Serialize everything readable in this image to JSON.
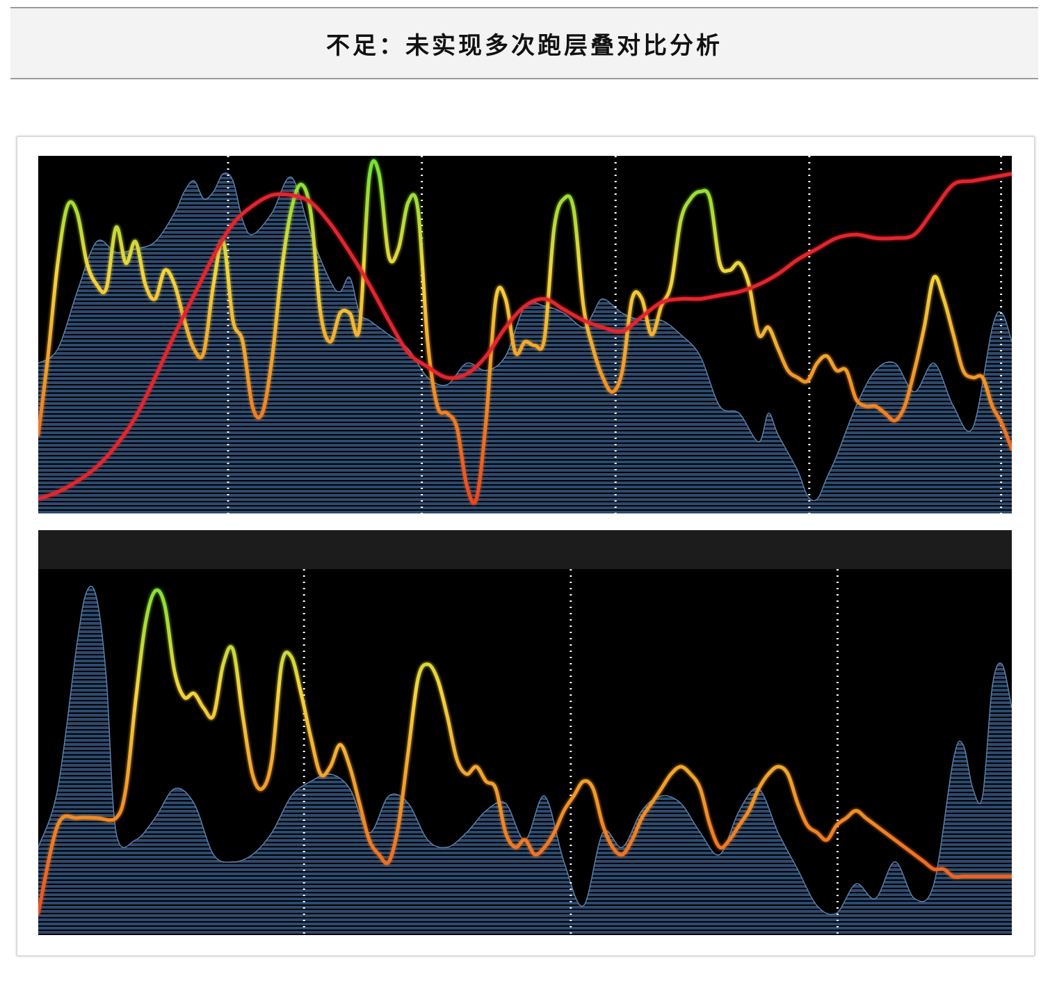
{
  "title": "不足：未实现多次跑层叠对比分析",
  "colors": {
    "background": "#000000",
    "area_fill": "#2b4a6e",
    "area_stroke": "#5d7fa8",
    "stripe": "#000000",
    "marker": "#ffffff",
    "overlay_line": "#e3252d",
    "gradient": [
      "#e8401e",
      "#f28c24",
      "#f5d53b",
      "#6ee232"
    ],
    "bottom_header_band": "#1c1c1c"
  },
  "chart_data": [
    {
      "type": "area",
      "name": "top-panel",
      "xlim": [
        0,
        100
      ],
      "ylim": [
        0,
        100
      ],
      "grid": false,
      "legend": "none",
      "markers_x": [
        19.5,
        39.4,
        59.3,
        79.2,
        98.9
      ],
      "area": {
        "x": [
          0,
          2,
          4,
          6,
          8,
          10,
          12,
          14,
          15,
          16,
          17,
          18,
          19,
          20,
          21,
          22,
          24,
          26,
          28,
          30,
          31,
          32,
          33,
          34,
          36,
          38,
          40,
          42,
          44,
          46,
          48,
          50,
          52,
          54,
          56,
          57,
          58,
          60,
          62,
          64,
          66,
          68,
          70,
          72,
          74,
          75,
          76,
          78,
          79,
          80,
          81,
          82,
          84,
          86,
          88,
          90,
          92,
          94,
          96,
          98,
          99,
          100
        ],
        "y": [
          42,
          46,
          62,
          76,
          73,
          74,
          76,
          84,
          90,
          93,
          88,
          90,
          95,
          93,
          82,
          78,
          84,
          94,
          78,
          65,
          62,
          66,
          56,
          54,
          50,
          46,
          38,
          36,
          42,
          40,
          44,
          58,
          58,
          56,
          52,
          56,
          60,
          56,
          54,
          54,
          50,
          44,
          30,
          28,
          20,
          28,
          22,
          12,
          5,
          4,
          10,
          16,
          30,
          40,
          42,
          34,
          42,
          30,
          24,
          52,
          56,
          48
        ]
      },
      "series": [
        {
          "style": "gradient",
          "x": [
            0,
            1,
            2,
            3,
            4,
            5,
            6,
            7,
            8,
            9,
            10,
            11,
            12,
            13,
            14,
            15,
            16,
            17,
            18,
            19,
            20,
            21,
            22,
            23,
            24,
            25,
            26,
            27,
            28,
            29,
            30,
            31,
            32,
            33,
            34,
            35,
            36,
            37,
            38,
            39,
            40,
            41,
            42,
            43,
            44,
            45,
            46,
            47,
            48,
            49,
            50,
            51,
            52,
            53,
            54,
            55,
            56,
            57,
            58,
            59,
            60,
            61,
            62,
            63,
            64,
            65,
            66,
            67,
            68,
            69,
            70,
            71,
            72,
            73,
            74,
            75,
            76,
            77,
            78,
            79,
            80,
            81,
            82,
            83,
            84,
            85,
            86,
            87,
            88,
            89,
            90,
            91,
            92,
            93,
            94,
            95,
            96,
            97,
            98,
            99,
            100
          ],
          "y": [
            22,
            44,
            70,
            86,
            84,
            70,
            64,
            63,
            80,
            70,
            76,
            64,
            60,
            68,
            64,
            54,
            46,
            45,
            64,
            76,
            54,
            48,
            30,
            28,
            43,
            68,
            85,
            92,
            84,
            56,
            48,
            56,
            56,
            52,
            94,
            95,
            72,
            74,
            87,
            85,
            48,
            30,
            28,
            24,
            8,
            4,
            26,
            60,
            60,
            45,
            48,
            47,
            49,
            80,
            88,
            85,
            58,
            46,
            38,
            34,
            40,
            60,
            60,
            50,
            58,
            64,
            82,
            88,
            90,
            88,
            70,
            68,
            70,
            64,
            50,
            52,
            46,
            40,
            38,
            37,
            42,
            44,
            40,
            40,
            32,
            30,
            30,
            28,
            26,
            30,
            40,
            52,
            66,
            60,
            50,
            40,
            38,
            38,
            30,
            25,
            18
          ]
        },
        {
          "style": "solid",
          "color": "#e3252d",
          "x": [
            0,
            2,
            4,
            6,
            8,
            10,
            12,
            14,
            16,
            18,
            20,
            22,
            24,
            26,
            28,
            30,
            32,
            34,
            36,
            38,
            40,
            42,
            44,
            46,
            48,
            50,
            52,
            54,
            56,
            58,
            60,
            62,
            64,
            66,
            68,
            70,
            72,
            74,
            76,
            78,
            80,
            82,
            84,
            86,
            88,
            90,
            92,
            94,
            96,
            98,
            100
          ],
          "y": [
            4,
            6,
            9,
            13,
            19,
            27,
            38,
            50,
            61,
            72,
            81,
            86,
            89,
            89,
            87,
            81,
            73,
            64,
            54,
            45,
            41,
            38,
            39,
            44,
            52,
            58,
            60,
            57,
            54,
            52,
            51,
            55,
            59,
            60,
            60,
            61,
            62,
            64,
            67,
            71,
            74,
            77,
            78,
            77,
            77,
            78,
            85,
            92,
            93,
            94,
            95
          ]
        }
      ]
    },
    {
      "type": "area",
      "name": "bottom-panel",
      "xlim": [
        0,
        100
      ],
      "ylim": [
        0,
        100
      ],
      "grid": false,
      "legend": "none",
      "markers_x": [
        27.3,
        54.7,
        82.1
      ],
      "area": {
        "x": [
          0,
          2,
          4,
          5,
          6,
          7,
          8,
          10,
          12,
          14,
          16,
          18,
          20,
          22,
          24,
          26,
          28,
          30,
          32,
          34,
          36,
          38,
          40,
          42,
          44,
          46,
          48,
          50,
          52,
          54,
          56,
          58,
          60,
          62,
          64,
          66,
          68,
          70,
          72,
          74,
          76,
          78,
          80,
          82,
          84,
          86,
          88,
          90,
          92,
          94,
          95,
          96,
          97,
          98,
          99,
          100
        ],
        "y": [
          24,
          40,
          80,
          94,
          92,
          70,
          28,
          26,
          32,
          40,
          36,
          22,
          20,
          22,
          28,
          38,
          42,
          44,
          40,
          28,
          38,
          36,
          26,
          24,
          28,
          34,
          36,
          26,
          38,
          20,
          8,
          28,
          24,
          34,
          38,
          36,
          28,
          22,
          34,
          40,
          28,
          18,
          8,
          6,
          14,
          10,
          20,
          10,
          14,
          48,
          52,
          40,
          38,
          68,
          74,
          62
        ]
      },
      "series": [
        {
          "style": "gradient",
          "x": [
            0,
            2,
            4,
            6,
            8,
            9,
            10,
            11,
            12,
            13,
            14,
            15,
            16,
            17,
            18,
            19,
            20,
            21,
            22,
            23,
            24,
            25,
            26,
            27,
            28,
            29,
            30,
            31,
            32,
            33,
            34,
            35,
            36,
            37,
            38,
            39,
            40,
            41,
            42,
            43,
            44,
            45,
            46,
            47,
            48,
            49,
            50,
            51,
            52,
            53,
            54,
            55,
            56,
            57,
            58,
            59,
            60,
            61,
            62,
            63,
            64,
            65,
            66,
            67,
            68,
            69,
            70,
            71,
            72,
            73,
            74,
            75,
            76,
            77,
            78,
            79,
            80,
            81,
            82,
            83,
            84,
            85,
            86,
            87,
            88,
            89,
            90,
            91,
            92,
            93,
            94,
            95,
            96,
            97,
            98,
            99,
            100
          ],
          "y": [
            6,
            30,
            32,
            32,
            32,
            40,
            64,
            85,
            94,
            90,
            72,
            65,
            66,
            62,
            60,
            74,
            78,
            60,
            44,
            40,
            48,
            74,
            76,
            66,
            54,
            44,
            46,
            52,
            46,
            36,
            26,
            22,
            20,
            30,
            50,
            70,
            74,
            70,
            60,
            48,
            44,
            46,
            42,
            40,
            28,
            24,
            26,
            22,
            24,
            28,
            34,
            38,
            42,
            40,
            30,
            24,
            22,
            26,
            32,
            36,
            40,
            44,
            46,
            44,
            40,
            30,
            24,
            26,
            30,
            34,
            40,
            44,
            46,
            44,
            36,
            30,
            28,
            26,
            30,
            32,
            34,
            32,
            30,
            28,
            26,
            24,
            22,
            20,
            18,
            18,
            16,
            16,
            16,
            16,
            16,
            16,
            16
          ]
        }
      ]
    }
  ]
}
